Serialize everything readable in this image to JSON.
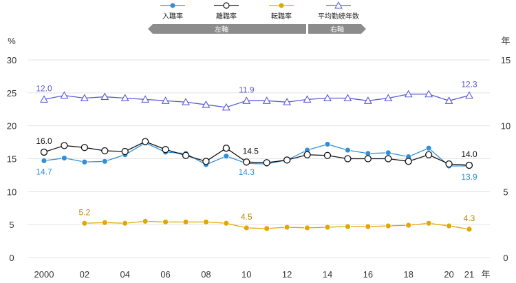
{
  "chart_data": {
    "type": "line",
    "x": [
      "2000",
      "01",
      "02",
      "03",
      "04",
      "05",
      "06",
      "07",
      "08",
      "09",
      "10",
      "11",
      "12",
      "13",
      "14",
      "15",
      "16",
      "17",
      "18",
      "19",
      "20",
      "21"
    ],
    "x_tick_labels": [
      "2000",
      "02",
      "04",
      "06",
      "08",
      "10",
      "12",
      "14",
      "16",
      "18",
      "20",
      "21"
    ],
    "x_unit": "年",
    "left_axis": {
      "unit": "%",
      "ylim": [
        0,
        30
      ],
      "ticks": [
        "0",
        "5",
        "10",
        "15",
        "20",
        "25",
        "30"
      ]
    },
    "right_axis": {
      "unit": "年",
      "ylim": [
        0,
        15
      ],
      "ticks": [
        "0",
        "5",
        "10",
        "15"
      ]
    },
    "axis_band": {
      "left": "左軸",
      "right": "右軸"
    },
    "grid": true,
    "legend_position": "top",
    "series": [
      {
        "name": "入職率",
        "axis": "left",
        "color": "#2f8fd8",
        "marker": "filled-circle",
        "values": [
          14.7,
          15.1,
          14.5,
          14.6,
          15.6,
          17.4,
          16.0,
          15.8,
          14.1,
          15.4,
          14.3,
          14.2,
          14.8,
          16.3,
          17.2,
          16.3,
          15.8,
          15.9,
          15.3,
          16.6,
          13.9,
          13.9
        ]
      },
      {
        "name": "離職率",
        "axis": "left",
        "color": "#111111",
        "marker": "open-circle",
        "values": [
          16.0,
          17.0,
          16.7,
          16.2,
          16.1,
          17.6,
          16.4,
          15.5,
          14.6,
          16.6,
          14.5,
          14.4,
          14.8,
          15.6,
          15.5,
          15.0,
          15.0,
          15.0,
          14.6,
          15.6,
          14.2,
          14.0
        ]
      },
      {
        "name": "転職率",
        "axis": "left",
        "color": "#e0a800",
        "marker": "filled-circle",
        "values": [
          null,
          null,
          5.2,
          5.3,
          5.2,
          5.5,
          5.4,
          5.4,
          5.4,
          5.2,
          4.5,
          4.4,
          4.6,
          4.5,
          4.6,
          4.7,
          4.7,
          4.8,
          4.9,
          5.2,
          4.8,
          4.3
        ]
      },
      {
        "name": "平均勤続年数",
        "axis": "right",
        "color": "#5a5ad8",
        "marker": "open-triangle",
        "values": [
          12.0,
          12.3,
          12.1,
          12.2,
          12.1,
          12.0,
          11.9,
          11.8,
          11.6,
          11.4,
          11.9,
          11.9,
          11.8,
          12.0,
          12.1,
          12.1,
          11.9,
          12.1,
          12.4,
          12.4,
          11.9,
          12.3
        ]
      }
    ],
    "data_labels": [
      {
        "series": "入職率",
        "index": 0,
        "text": "14.7"
      },
      {
        "series": "入職率",
        "index": 10,
        "text": "14.3"
      },
      {
        "series": "入職率",
        "index": 21,
        "text": "13.9"
      },
      {
        "series": "離職率",
        "index": 0,
        "text": "16.0"
      },
      {
        "series": "離職率",
        "index": 10,
        "text": "14.5"
      },
      {
        "series": "離職率",
        "index": 21,
        "text": "14.0"
      },
      {
        "series": "転職率",
        "index": 2,
        "text": "5.2"
      },
      {
        "series": "転職率",
        "index": 10,
        "text": "4.5"
      },
      {
        "series": "転職率",
        "index": 21,
        "text": "4.3"
      },
      {
        "series": "平均勤続年数",
        "index": 0,
        "text": "12.0"
      },
      {
        "series": "平均勤続年数",
        "index": 10,
        "text": "11.9"
      },
      {
        "series": "平均勤続年数",
        "index": 21,
        "text": "12.3"
      }
    ]
  }
}
